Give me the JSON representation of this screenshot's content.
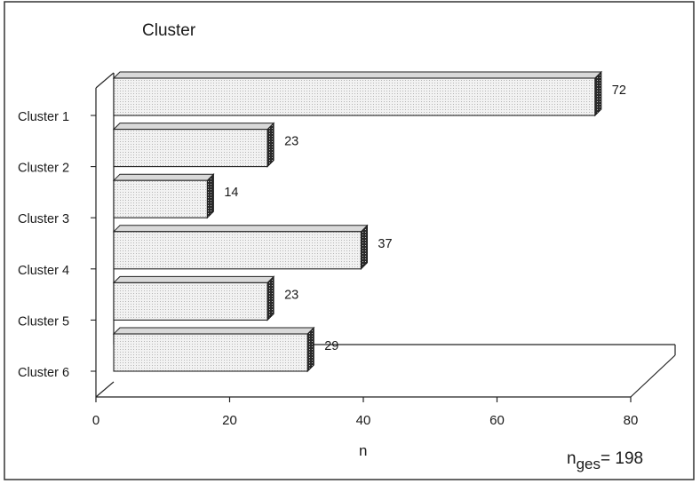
{
  "chart_data": {
    "type": "bar",
    "orientation": "horizontal",
    "style": "3d",
    "title": "Cluster",
    "xlabel": "n",
    "categories": [
      "Cluster 1",
      "Cluster 2",
      "Cluster 3",
      "Cluster 4",
      "Cluster 5",
      "Cluster 6"
    ],
    "values": [
      72,
      23,
      14,
      37,
      23,
      29
    ],
    "xlim": [
      0,
      80
    ],
    "xticks": [
      "0",
      "20",
      "40",
      "60",
      "80"
    ],
    "grid": false,
    "legend": "none",
    "bar_fill_color": "#eeeeee",
    "bar_side_color": "#333333",
    "total_label": {
      "prefix": "n",
      "subscript": "ges",
      "value": "= 198"
    }
  }
}
